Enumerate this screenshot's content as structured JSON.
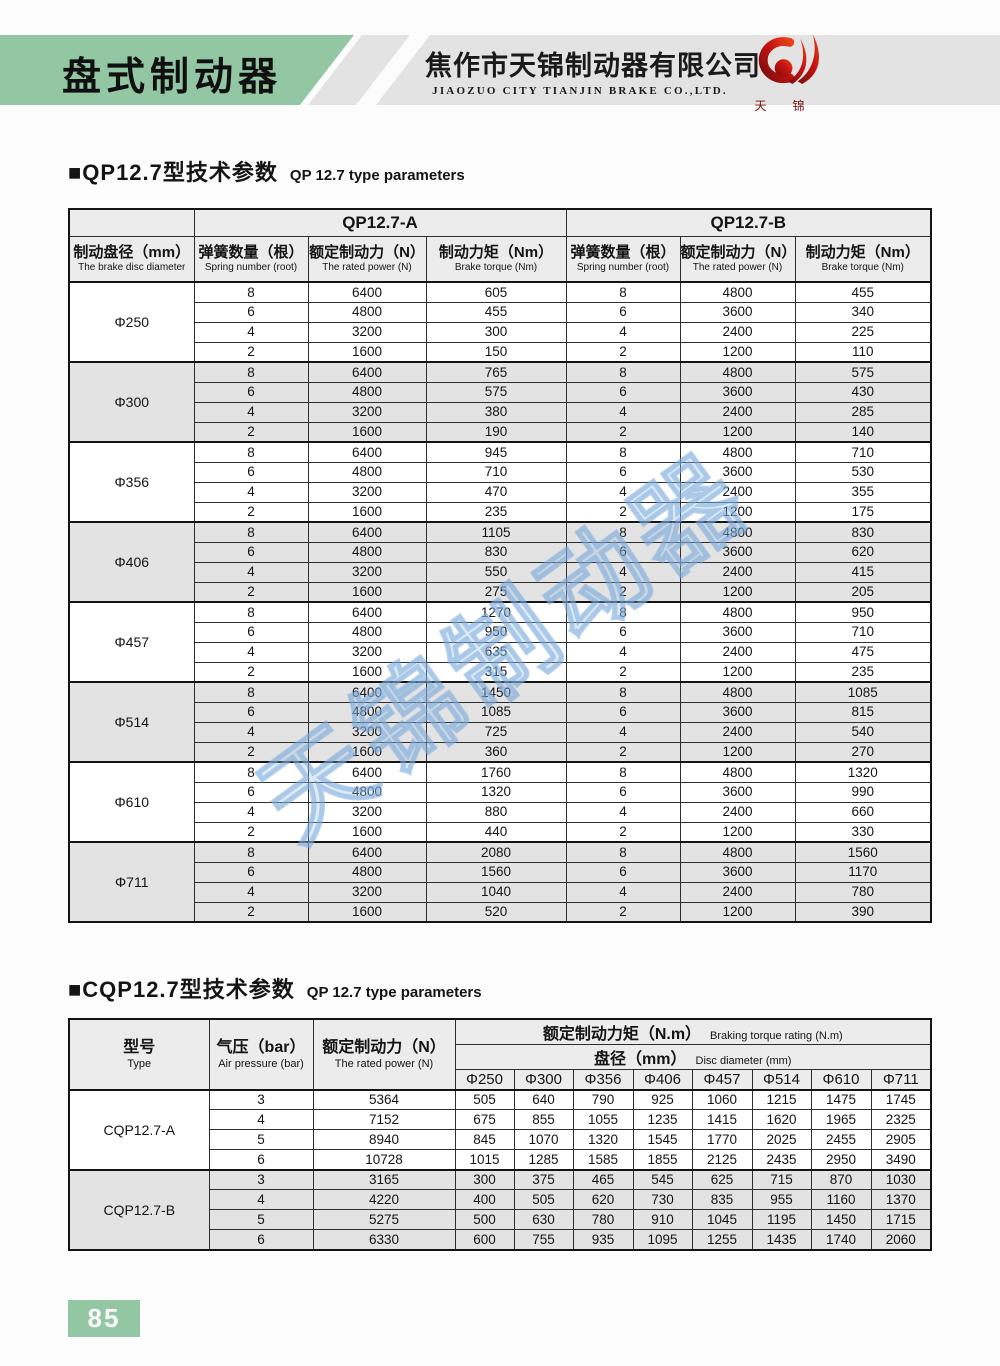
{
  "colors": {
    "accent_green": "#93c7a3",
    "band_gray": "#e3e3e3",
    "row_shade_gray": "#e3e3e3",
    "logo_red": "#c41212",
    "watermark_blue": "#8eb8e4"
  },
  "header": {
    "title": "盘式制动器",
    "company_cn": "焦作市天锦制动器有限公司",
    "company_en": "JIAOZUO CITY TIANJIN BRAKE CO.,LTD.",
    "logo_caption": "天锦"
  },
  "watermark": {
    "text": "天锦制动器"
  },
  "sections": {
    "qp": {
      "title_cn": "■QP12.7型技术参数",
      "title_en": "QP 12.7 type parameters"
    },
    "cqp": {
      "title_cn": "■CQP12.7型技术参数",
      "title_en": "QP 12.7 type parameters"
    }
  },
  "table_qp": {
    "group_a": "QP12.7-A",
    "group_b": "QP12.7-B",
    "col_disc_cn": "制动盘径（mm）",
    "col_disc_en": "The brake disc diameter",
    "sub": [
      {
        "cn": "弹簧数量（根）",
        "en": "Spring number (root)"
      },
      {
        "cn": "额定制动力（N）",
        "en": "The rated power (N)"
      },
      {
        "cn": "制动力矩（Nm）",
        "en": "Brake torque (Nm)"
      }
    ],
    "blocks": [
      {
        "diameter": "Φ250",
        "rows": [
          [
            8,
            6400,
            605,
            8,
            4800,
            455
          ],
          [
            6,
            4800,
            455,
            6,
            3600,
            340
          ],
          [
            4,
            3200,
            300,
            4,
            2400,
            225
          ],
          [
            2,
            1600,
            150,
            2,
            1200,
            110
          ]
        ]
      },
      {
        "diameter": "Φ300",
        "rows": [
          [
            8,
            6400,
            765,
            8,
            4800,
            575
          ],
          [
            6,
            4800,
            575,
            6,
            3600,
            430
          ],
          [
            4,
            3200,
            380,
            4,
            2400,
            285
          ],
          [
            2,
            1600,
            190,
            2,
            1200,
            140
          ]
        ]
      },
      {
        "diameter": "Φ356",
        "rows": [
          [
            8,
            6400,
            945,
            8,
            4800,
            710
          ],
          [
            6,
            4800,
            710,
            6,
            3600,
            530
          ],
          [
            4,
            3200,
            470,
            4,
            2400,
            355
          ],
          [
            2,
            1600,
            235,
            2,
            1200,
            175
          ]
        ]
      },
      {
        "diameter": "Φ406",
        "rows": [
          [
            8,
            6400,
            1105,
            8,
            4800,
            830
          ],
          [
            6,
            4800,
            830,
            6,
            3600,
            620
          ],
          [
            4,
            3200,
            550,
            4,
            2400,
            415
          ],
          [
            2,
            1600,
            275,
            2,
            1200,
            205
          ]
        ]
      },
      {
        "diameter": "Φ457",
        "rows": [
          [
            8,
            6400,
            1270,
            8,
            4800,
            950
          ],
          [
            6,
            4800,
            950,
            6,
            3600,
            710
          ],
          [
            4,
            3200,
            635,
            4,
            2400,
            475
          ],
          [
            2,
            1600,
            315,
            2,
            1200,
            235
          ]
        ]
      },
      {
        "diameter": "Φ514",
        "rows": [
          [
            8,
            6400,
            1450,
            8,
            4800,
            1085
          ],
          [
            6,
            4800,
            1085,
            6,
            3600,
            815
          ],
          [
            4,
            3200,
            725,
            4,
            2400,
            540
          ],
          [
            2,
            1600,
            360,
            2,
            1200,
            270
          ]
        ]
      },
      {
        "diameter": "Φ610",
        "rows": [
          [
            8,
            6400,
            1760,
            8,
            4800,
            1320
          ],
          [
            6,
            4800,
            1320,
            6,
            3600,
            990
          ],
          [
            4,
            3200,
            880,
            4,
            2400,
            660
          ],
          [
            2,
            1600,
            440,
            2,
            1200,
            330
          ]
        ]
      },
      {
        "diameter": "Φ711",
        "rows": [
          [
            8,
            6400,
            2080,
            8,
            4800,
            1560
          ],
          [
            6,
            4800,
            1560,
            6,
            3600,
            1170
          ],
          [
            4,
            3200,
            1040,
            4,
            2400,
            780
          ],
          [
            2,
            1600,
            520,
            2,
            1200,
            390
          ]
        ]
      }
    ]
  },
  "table_cqp": {
    "type_cn": "型号",
    "type_en": "Type",
    "pressure_cn": "气压（bar）",
    "pressure_en": "Air pressure (bar)",
    "power_cn": "额定制动力（N）",
    "power_en": "The rated power (N)",
    "torque_cn": "额定制动力矩（N.m）",
    "torque_en": "Braking torque rating (N.m)",
    "disc_cn": "盘径（mm）",
    "disc_en": "Disc diameter (mm)",
    "diameters": [
      "Φ250",
      "Φ300",
      "Φ356",
      "Φ406",
      "Φ457",
      "Φ514",
      "Φ610",
      "Φ711"
    ],
    "blocks": [
      {
        "type": "CQP12.7-A",
        "rows": [
          [
            3,
            5364,
            505,
            640,
            790,
            925,
            1060,
            1215,
            1475,
            1745
          ],
          [
            4,
            7152,
            675,
            855,
            1055,
            1235,
            1415,
            1620,
            1965,
            2325
          ],
          [
            5,
            8940,
            845,
            1070,
            1320,
            1545,
            1770,
            2025,
            2455,
            2905
          ],
          [
            6,
            10728,
            1015,
            1285,
            1585,
            1855,
            2125,
            2435,
            2950,
            3490
          ]
        ]
      },
      {
        "type": "CQP12.7-B",
        "rows": [
          [
            3,
            3165,
            300,
            375,
            465,
            545,
            625,
            715,
            870,
            1030
          ],
          [
            4,
            4220,
            400,
            505,
            620,
            730,
            835,
            955,
            1160,
            1370
          ],
          [
            5,
            5275,
            500,
            630,
            780,
            910,
            1045,
            1195,
            1450,
            1715
          ],
          [
            6,
            6330,
            600,
            755,
            935,
            1095,
            1255,
            1435,
            1740,
            2060
          ]
        ]
      }
    ]
  },
  "footer": {
    "page_number": "85"
  }
}
